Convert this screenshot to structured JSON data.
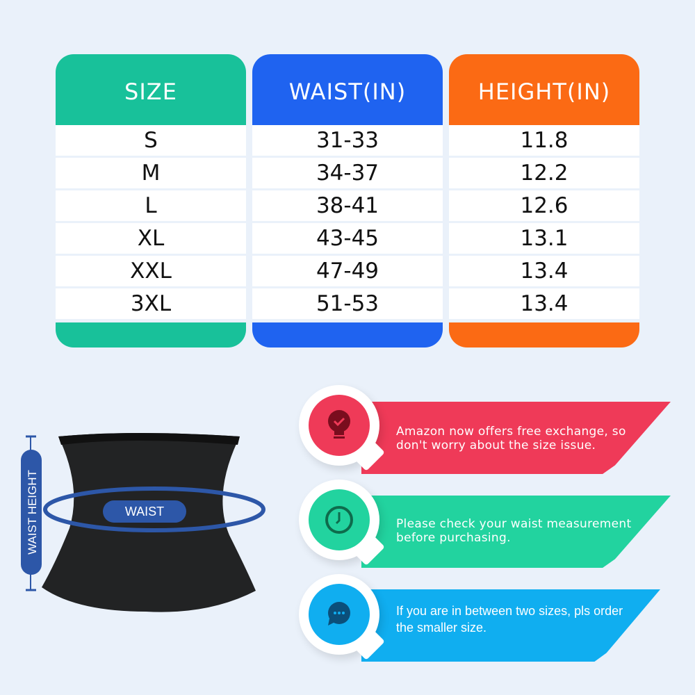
{
  "table": {
    "columns": [
      {
        "header": "SIZE",
        "color": "#18c19a",
        "values": [
          "S",
          "M",
          "L",
          "XL",
          "XXL",
          "3XL"
        ]
      },
      {
        "header": "WAIST(IN)",
        "color": "#1f63f0",
        "values": [
          "31-33",
          "34-37",
          "38-41",
          "43-45",
          "47-49",
          "51-53"
        ]
      },
      {
        "header": "HEIGHT(IN)",
        "color": "#fb6a14",
        "values": [
          "11.8",
          "12.2",
          "12.6",
          "13.1",
          "13.4",
          "13.4"
        ]
      }
    ]
  },
  "figure": {
    "waist_label": "WAIST",
    "height_label": "WAIST HEIGHT",
    "accent": "#2d57a8"
  },
  "tips": [
    {
      "text": "Amazon now offers free exchange, so don't worry about the size issue.",
      "icon": "lightbulb-check-icon",
      "color": "#ef3a58"
    },
    {
      "text": "Please check your waist measurement before purchasing.",
      "icon": "clock-icon",
      "color": "#22d39f"
    },
    {
      "text": "If you are in between two sizes, pls order the smaller size.",
      "icon": "chat-bubble-icon",
      "color": "#10aef0"
    }
  ]
}
